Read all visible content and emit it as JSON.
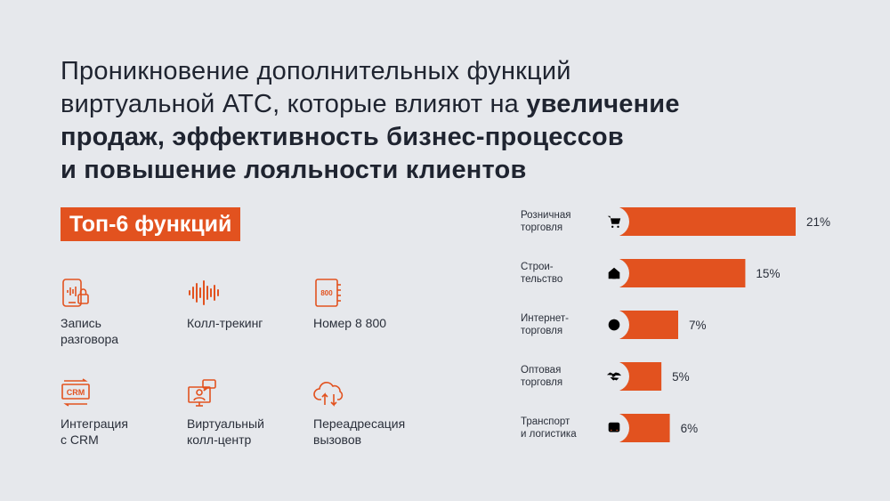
{
  "header": {
    "title_lines": [
      [
        {
          "text": "Проникновение дополнительных функций",
          "bold": false
        }
      ],
      [
        {
          "text": "виртуальной АТС, которые влияют на ",
          "bold": false
        },
        {
          "text": "увеличение",
          "bold": true
        }
      ],
      [
        {
          "text": "продаж, эффективность бизнес-процессов",
          "bold": true
        }
      ],
      [
        {
          "text": "и повышение лояльности клиентов",
          "bold": true
        }
      ]
    ]
  },
  "badge": {
    "label": "Топ-6 функций"
  },
  "colors": {
    "accent": "#e2521f",
    "background": "#e6e8ec",
    "text": "#1f2430"
  },
  "features": [
    {
      "label": "Запись\nразговора",
      "icon": "phone-recording-icon"
    },
    {
      "label": "Колл-трекинг",
      "icon": "sound-wave-icon"
    },
    {
      "label": "Номер 8 800",
      "icon": "notebook-800-icon"
    },
    {
      "label": "Интеграция\nс CRM",
      "icon": "crm-sync-icon"
    },
    {
      "label": "Виртуальный\nколл-центр",
      "icon": "contact-center-icon"
    },
    {
      "label": "Переадресация\nвызовов",
      "icon": "cloud-forward-icon"
    }
  ],
  "chart_data": {
    "type": "bar",
    "orientation": "horizontal",
    "categories": [
      "Розничная торговля",
      "Строительство",
      "Интернет-торговля",
      "Оптовая торговля",
      "Транспорт и логистика"
    ],
    "category_label_lines": [
      [
        "Розничная",
        "торговля"
      ],
      [
        "Строи-",
        "тельство"
      ],
      [
        "Интернет-",
        "торговля"
      ],
      [
        "Оптовая",
        "торговля"
      ],
      [
        "Транспорт",
        "и логистика"
      ]
    ],
    "category_icons": [
      "cart-icon",
      "house-icon",
      "globe-icon",
      "handshake-icon",
      "bus-icon"
    ],
    "values": [
      21,
      15,
      7,
      5,
      6
    ],
    "value_labels": [
      "21%",
      "15%",
      "7%",
      "5%",
      "6%"
    ],
    "unit": "%",
    "color": "#e2521f",
    "xlim": [
      0,
      21
    ]
  }
}
